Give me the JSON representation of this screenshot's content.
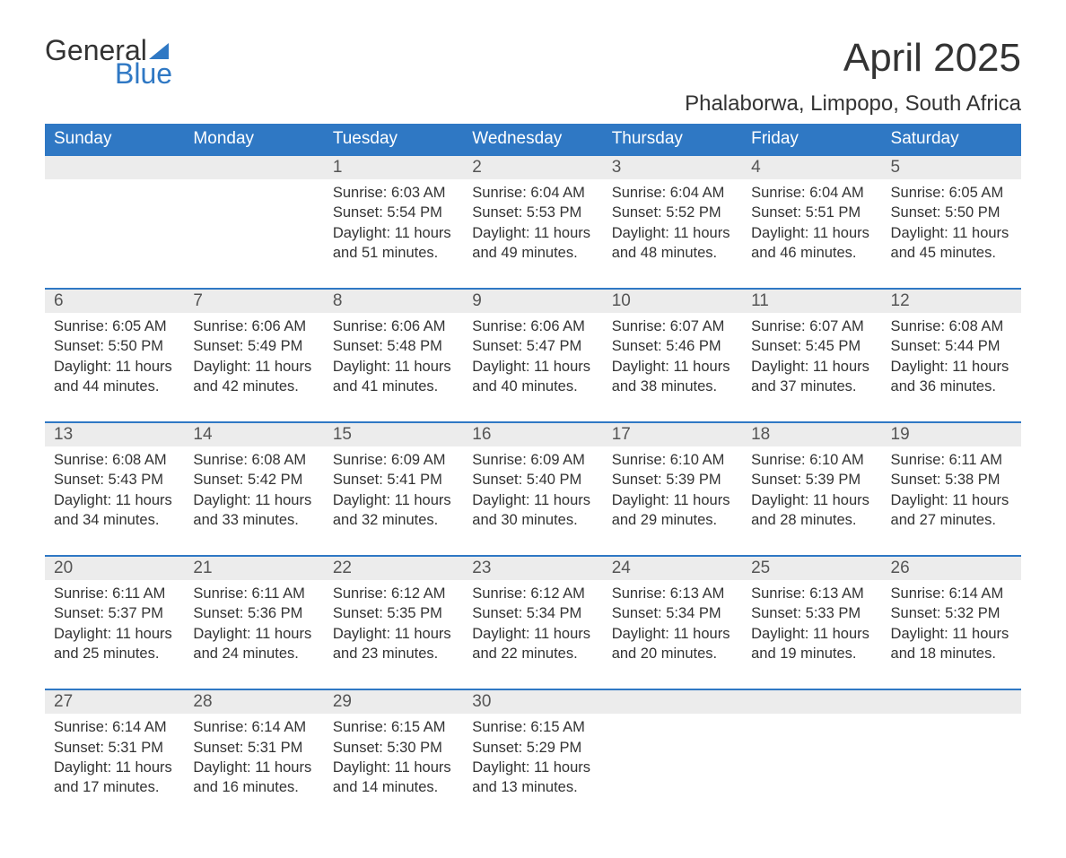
{
  "logo": {
    "word1": "General",
    "word2": "Blue",
    "text_color": "#333333",
    "accent_color": "#2f78c4"
  },
  "title": "April 2025",
  "location": "Phalaborwa, Limpopo, South Africa",
  "colors": {
    "header_bg": "#2f78c4",
    "header_text": "#ffffff",
    "daynum_bg": "#ececec",
    "row_border": "#2f78c4",
    "body_text": "#333333"
  },
  "day_headers": [
    "Sunday",
    "Monday",
    "Tuesday",
    "Wednesday",
    "Thursday",
    "Friday",
    "Saturday"
  ],
  "weeks": [
    [
      null,
      null,
      {
        "n": "1",
        "sr": "Sunrise: 6:03 AM",
        "ss": "Sunset: 5:54 PM",
        "dl": "Daylight: 11 hours and 51 minutes."
      },
      {
        "n": "2",
        "sr": "Sunrise: 6:04 AM",
        "ss": "Sunset: 5:53 PM",
        "dl": "Daylight: 11 hours and 49 minutes."
      },
      {
        "n": "3",
        "sr": "Sunrise: 6:04 AM",
        "ss": "Sunset: 5:52 PM",
        "dl": "Daylight: 11 hours and 48 minutes."
      },
      {
        "n": "4",
        "sr": "Sunrise: 6:04 AM",
        "ss": "Sunset: 5:51 PM",
        "dl": "Daylight: 11 hours and 46 minutes."
      },
      {
        "n": "5",
        "sr": "Sunrise: 6:05 AM",
        "ss": "Sunset: 5:50 PM",
        "dl": "Daylight: 11 hours and 45 minutes."
      }
    ],
    [
      {
        "n": "6",
        "sr": "Sunrise: 6:05 AM",
        "ss": "Sunset: 5:50 PM",
        "dl": "Daylight: 11 hours and 44 minutes."
      },
      {
        "n": "7",
        "sr": "Sunrise: 6:06 AM",
        "ss": "Sunset: 5:49 PM",
        "dl": "Daylight: 11 hours and 42 minutes."
      },
      {
        "n": "8",
        "sr": "Sunrise: 6:06 AM",
        "ss": "Sunset: 5:48 PM",
        "dl": "Daylight: 11 hours and 41 minutes."
      },
      {
        "n": "9",
        "sr": "Sunrise: 6:06 AM",
        "ss": "Sunset: 5:47 PM",
        "dl": "Daylight: 11 hours and 40 minutes."
      },
      {
        "n": "10",
        "sr": "Sunrise: 6:07 AM",
        "ss": "Sunset: 5:46 PM",
        "dl": "Daylight: 11 hours and 38 minutes."
      },
      {
        "n": "11",
        "sr": "Sunrise: 6:07 AM",
        "ss": "Sunset: 5:45 PM",
        "dl": "Daylight: 11 hours and 37 minutes."
      },
      {
        "n": "12",
        "sr": "Sunrise: 6:08 AM",
        "ss": "Sunset: 5:44 PM",
        "dl": "Daylight: 11 hours and 36 minutes."
      }
    ],
    [
      {
        "n": "13",
        "sr": "Sunrise: 6:08 AM",
        "ss": "Sunset: 5:43 PM",
        "dl": "Daylight: 11 hours and 34 minutes."
      },
      {
        "n": "14",
        "sr": "Sunrise: 6:08 AM",
        "ss": "Sunset: 5:42 PM",
        "dl": "Daylight: 11 hours and 33 minutes."
      },
      {
        "n": "15",
        "sr": "Sunrise: 6:09 AM",
        "ss": "Sunset: 5:41 PM",
        "dl": "Daylight: 11 hours and 32 minutes."
      },
      {
        "n": "16",
        "sr": "Sunrise: 6:09 AM",
        "ss": "Sunset: 5:40 PM",
        "dl": "Daylight: 11 hours and 30 minutes."
      },
      {
        "n": "17",
        "sr": "Sunrise: 6:10 AM",
        "ss": "Sunset: 5:39 PM",
        "dl": "Daylight: 11 hours and 29 minutes."
      },
      {
        "n": "18",
        "sr": "Sunrise: 6:10 AM",
        "ss": "Sunset: 5:39 PM",
        "dl": "Daylight: 11 hours and 28 minutes."
      },
      {
        "n": "19",
        "sr": "Sunrise: 6:11 AM",
        "ss": "Sunset: 5:38 PM",
        "dl": "Daylight: 11 hours and 27 minutes."
      }
    ],
    [
      {
        "n": "20",
        "sr": "Sunrise: 6:11 AM",
        "ss": "Sunset: 5:37 PM",
        "dl": "Daylight: 11 hours and 25 minutes."
      },
      {
        "n": "21",
        "sr": "Sunrise: 6:11 AM",
        "ss": "Sunset: 5:36 PM",
        "dl": "Daylight: 11 hours and 24 minutes."
      },
      {
        "n": "22",
        "sr": "Sunrise: 6:12 AM",
        "ss": "Sunset: 5:35 PM",
        "dl": "Daylight: 11 hours and 23 minutes."
      },
      {
        "n": "23",
        "sr": "Sunrise: 6:12 AM",
        "ss": "Sunset: 5:34 PM",
        "dl": "Daylight: 11 hours and 22 minutes."
      },
      {
        "n": "24",
        "sr": "Sunrise: 6:13 AM",
        "ss": "Sunset: 5:34 PM",
        "dl": "Daylight: 11 hours and 20 minutes."
      },
      {
        "n": "25",
        "sr": "Sunrise: 6:13 AM",
        "ss": "Sunset: 5:33 PM",
        "dl": "Daylight: 11 hours and 19 minutes."
      },
      {
        "n": "26",
        "sr": "Sunrise: 6:14 AM",
        "ss": "Sunset: 5:32 PM",
        "dl": "Daylight: 11 hours and 18 minutes."
      }
    ],
    [
      {
        "n": "27",
        "sr": "Sunrise: 6:14 AM",
        "ss": "Sunset: 5:31 PM",
        "dl": "Daylight: 11 hours and 17 minutes."
      },
      {
        "n": "28",
        "sr": "Sunrise: 6:14 AM",
        "ss": "Sunset: 5:31 PM",
        "dl": "Daylight: 11 hours and 16 minutes."
      },
      {
        "n": "29",
        "sr": "Sunrise: 6:15 AM",
        "ss": "Sunset: 5:30 PM",
        "dl": "Daylight: 11 hours and 14 minutes."
      },
      {
        "n": "30",
        "sr": "Sunrise: 6:15 AM",
        "ss": "Sunset: 5:29 PM",
        "dl": "Daylight: 11 hours and 13 minutes."
      },
      null,
      null,
      null
    ]
  ]
}
